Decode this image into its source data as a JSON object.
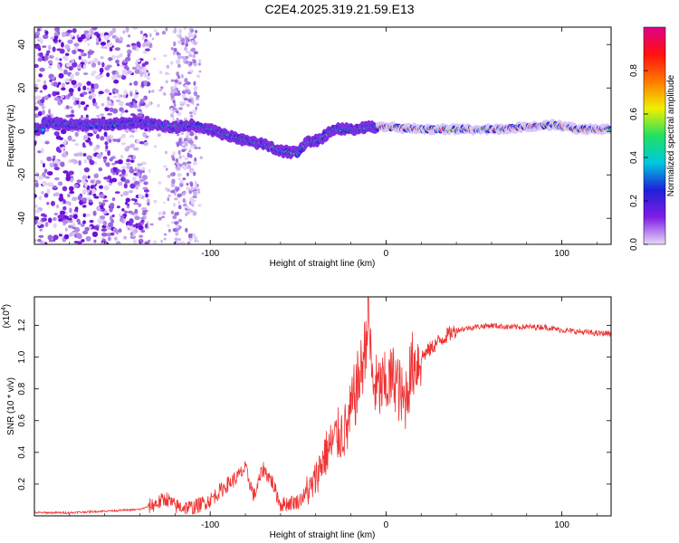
{
  "title": "C2E4.2025.319.21.59.E13",
  "chart_data": [
    {
      "type": "heatmap",
      "xlabel": "Height of straight line (km)",
      "ylabel": "Frequency (Hz)",
      "xlim": [
        -200,
        128
      ],
      "ylim": [
        -52,
        48
      ],
      "xticks": [
        -100,
        0,
        100
      ],
      "yticks": [
        -40,
        -20,
        0,
        20,
        40
      ],
      "ridge": [
        {
          "x": -195,
          "y": 4
        },
        {
          "x": -175,
          "y": 3
        },
        {
          "x": -160,
          "y": 3
        },
        {
          "x": -140,
          "y": 4
        },
        {
          "x": -120,
          "y": 2
        },
        {
          "x": -110,
          "y": 3
        },
        {
          "x": -100,
          "y": 1
        },
        {
          "x": -90,
          "y": -2
        },
        {
          "x": -80,
          "y": -4
        },
        {
          "x": -70,
          "y": -6
        },
        {
          "x": -60,
          "y": -9
        },
        {
          "x": -50,
          "y": -10
        },
        {
          "x": -45,
          "y": -5
        },
        {
          "x": -38,
          "y": -4
        },
        {
          "x": -30,
          "y": 1
        },
        {
          "x": -20,
          "y": 1
        },
        {
          "x": -10,
          "y": 2
        },
        {
          "x": 0,
          "y": 2
        },
        {
          "x": 20,
          "y": 1
        },
        {
          "x": 40,
          "y": 1
        },
        {
          "x": 60,
          "y": 1
        },
        {
          "x": 80,
          "y": 2
        },
        {
          "x": 95,
          "y": 3
        },
        {
          "x": 110,
          "y": 1
        },
        {
          "x": 128,
          "y": 1
        }
      ]
    },
    {
      "type": "line",
      "series_name": "SNR",
      "color": "#ee3333",
      "xlabel": "Height of straight line (km)",
      "ylabel": "SNR (10 * v/v)",
      "yscale_label": "(x10",
      "yscale_exponent": "4",
      "xlim": [
        -200,
        128
      ],
      "ylim": [
        0.0,
        1.38
      ],
      "xticks": [
        -100,
        0,
        100
      ],
      "yticks": [
        0.2,
        0.4,
        0.6,
        0.8,
        1.0,
        1.2
      ],
      "yticklabels": [
        "0.2",
        "0.4",
        "0.6",
        "0.8",
        "1.0",
        "1.2"
      ],
      "points": [
        {
          "x": -200,
          "y": 0.02
        },
        {
          "x": -180,
          "y": 0.02
        },
        {
          "x": -160,
          "y": 0.03
        },
        {
          "x": -140,
          "y": 0.04
        },
        {
          "x": -130,
          "y": 0.08
        },
        {
          "x": -125,
          "y": 0.11
        },
        {
          "x": -120,
          "y": 0.06
        },
        {
          "x": -110,
          "y": 0.05
        },
        {
          "x": -100,
          "y": 0.1
        },
        {
          "x": -90,
          "y": 0.2
        },
        {
          "x": -85,
          "y": 0.24
        },
        {
          "x": -80,
          "y": 0.3
        },
        {
          "x": -75,
          "y": 0.12
        },
        {
          "x": -70,
          "y": 0.3
        },
        {
          "x": -65,
          "y": 0.22
        },
        {
          "x": -60,
          "y": 0.07
        },
        {
          "x": -50,
          "y": 0.09
        },
        {
          "x": -42,
          "y": 0.18
        },
        {
          "x": -35,
          "y": 0.38
        },
        {
          "x": -28,
          "y": 0.5
        },
        {
          "x": -22,
          "y": 0.55
        },
        {
          "x": -18,
          "y": 0.75
        },
        {
          "x": -14,
          "y": 0.92
        },
        {
          "x": -12,
          "y": 1.05
        },
        {
          "x": -10,
          "y": 1.3
        },
        {
          "x": -8,
          "y": 0.85
        },
        {
          "x": -5,
          "y": 0.8
        },
        {
          "x": 0,
          "y": 0.82
        },
        {
          "x": 5,
          "y": 0.88
        },
        {
          "x": 10,
          "y": 0.7
        },
        {
          "x": 15,
          "y": 0.95
        },
        {
          "x": 20,
          "y": 1.0
        },
        {
          "x": 25,
          "y": 1.05
        },
        {
          "x": 30,
          "y": 1.1
        },
        {
          "x": 35,
          "y": 1.14
        },
        {
          "x": 40,
          "y": 1.17
        },
        {
          "x": 50,
          "y": 1.19
        },
        {
          "x": 60,
          "y": 1.2
        },
        {
          "x": 70,
          "y": 1.19
        },
        {
          "x": 80,
          "y": 1.19
        },
        {
          "x": 90,
          "y": 1.19
        },
        {
          "x": 100,
          "y": 1.17
        },
        {
          "x": 110,
          "y": 1.16
        },
        {
          "x": 120,
          "y": 1.15
        },
        {
          "x": 128,
          "y": 1.15
        }
      ]
    }
  ],
  "colorbar": {
    "label": "Normalized spectral amplitude",
    "range": [
      0,
      1
    ],
    "ticks": [
      0.0,
      0.2,
      0.4,
      0.6,
      0.8
    ],
    "ticklabels": [
      "0.0",
      "0.2",
      "0.4",
      "0.6",
      "0.8"
    ],
    "colors": [
      "#e6d9f7",
      "#7f1ee6",
      "#1f1fd8",
      "#00c8e0",
      "#20e060",
      "#f0f000",
      "#ff7a00",
      "#ff1010",
      "#e0008a"
    ]
  }
}
